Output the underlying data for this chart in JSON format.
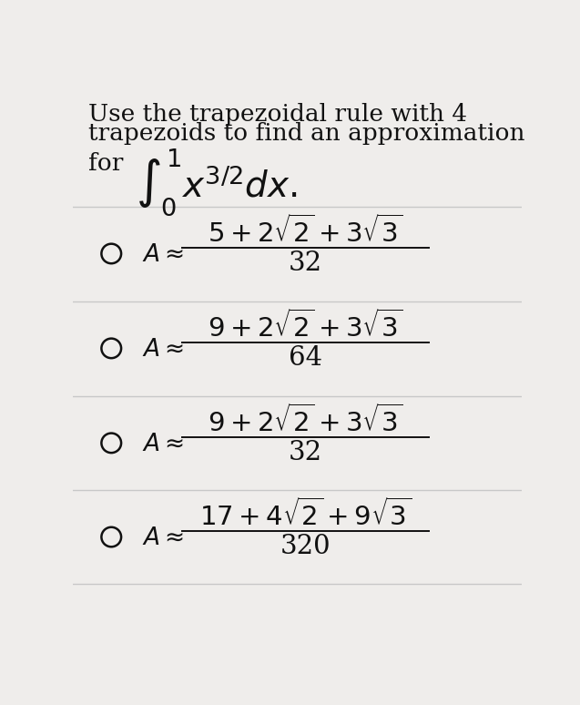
{
  "background_color": "#efedeb",
  "title_line1": "Use the trapezoidal rule with 4",
  "title_line2": "trapezoids to find an approximation",
  "for_text": "for",
  "text_color": "#111111",
  "line_color": "#c8c8c8",
  "circle_color": "#111111",
  "font_size_title": 19,
  "font_size_integral": 28,
  "font_size_option": 21,
  "font_size_label": 19,
  "options": [
    {
      "numerator": "$5 + 2\\sqrt{2} + 3\\sqrt{3}$",
      "denominator": "32"
    },
    {
      "numerator": "$9 + 2\\sqrt{2} + 3\\sqrt{3}$",
      "denominator": "64"
    },
    {
      "numerator": "$9 + 2\\sqrt{2} + 3\\sqrt{3}$",
      "denominator": "32"
    },
    {
      "numerator": "$17 + 4\\sqrt{2} + 9\\sqrt{3}$",
      "denominator": "320"
    }
  ]
}
